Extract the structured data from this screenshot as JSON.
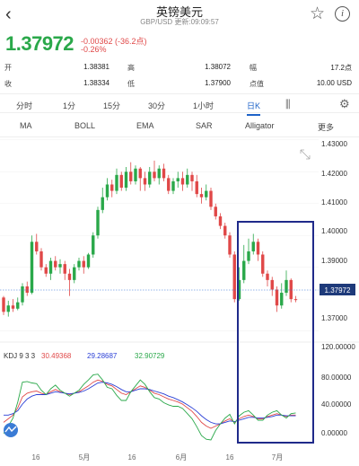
{
  "header": {
    "title": "英镑美元",
    "subtitle": "GBP/USD 更新:09:09:57"
  },
  "quote": {
    "price": "1.37972",
    "change": "-0.00362 (-36.2点)",
    "change_pct": "-0.26%",
    "rows": [
      {
        "l1": "开",
        "v1": "1.38381",
        "l2": "高",
        "v2": "1.38072",
        "l3": "幅",
        "v3": "17.2点"
      },
      {
        "l1": "收",
        "v1": "1.38334",
        "l2": "低",
        "v2": "1.37900",
        "l3": "点值",
        "v3": "10.00 USD"
      }
    ]
  },
  "period_tabs": [
    "分时",
    "1分",
    "15分",
    "30分",
    "1小时",
    "日K"
  ],
  "indicators": [
    "MA",
    "BOLL",
    "EMA",
    "SAR",
    "Alligator",
    "更多"
  ],
  "colors": {
    "up": "#2aa84a",
    "down": "#e04848",
    "accent": "#1e63c8",
    "box": "#1f2a8a"
  },
  "chart": {
    "price_axis": [
      "1.43000",
      "1.42000",
      "1.41000",
      "1.40000",
      "1.39000",
      "1.38000",
      "1.37000"
    ],
    "current_price_label": "1.37972",
    "kdj_axis": [
      "120.00000",
      "80.00000",
      "40.00000",
      "0.00000"
    ],
    "kdj_legend": {
      "name": "KDJ 9 3 3",
      "k": "30.49368",
      "d": "29.28687",
      "j": "32.90729"
    },
    "x_labels": [
      "16",
      "5月",
      "16",
      "6月",
      "16",
      "7月"
    ]
  },
  "chart_data": {
    "type": "candlestick",
    "series": [
      {
        "name": "GBP/USD",
        "ohlc": [
          [
            1.3805,
            1.376,
            1.381,
            1.375
          ],
          [
            1.376,
            1.378,
            1.3795,
            1.3745
          ],
          [
            1.378,
            1.377,
            1.38,
            1.376
          ],
          [
            1.377,
            1.379,
            1.3805,
            1.3765
          ],
          [
            1.379,
            1.384,
            1.385,
            1.378
          ],
          [
            1.384,
            1.382,
            1.3855,
            1.381
          ],
          [
            1.382,
            1.398,
            1.4,
            1.3815
          ],
          [
            1.398,
            1.395,
            1.4005,
            1.394
          ],
          [
            1.395,
            1.39,
            1.396,
            1.389
          ],
          [
            1.39,
            1.388,
            1.391,
            1.387
          ],
          [
            1.388,
            1.392,
            1.393,
            1.386
          ],
          [
            1.392,
            1.39,
            1.3935,
            1.389
          ],
          [
            1.39,
            1.391,
            1.3925,
            1.388
          ],
          [
            1.391,
            1.388,
            1.392,
            1.386
          ],
          [
            1.388,
            1.386,
            1.3895,
            1.381
          ],
          [
            1.386,
            1.39,
            1.391,
            1.385
          ],
          [
            1.39,
            1.392,
            1.393,
            1.389
          ],
          [
            1.392,
            1.39,
            1.3935,
            1.388
          ],
          [
            1.39,
            1.394,
            1.3945,
            1.3895
          ],
          [
            1.394,
            1.4,
            1.401,
            1.393
          ],
          [
            1.4,
            1.408,
            1.409,
            1.399
          ],
          [
            1.408,
            1.412,
            1.415,
            1.407
          ],
          [
            1.412,
            1.416,
            1.418,
            1.411
          ],
          [
            1.416,
            1.414,
            1.4175,
            1.412
          ],
          [
            1.414,
            1.419,
            1.421,
            1.413
          ],
          [
            1.419,
            1.415,
            1.42,
            1.414
          ],
          [
            1.415,
            1.42,
            1.4215,
            1.414
          ],
          [
            1.42,
            1.417,
            1.423,
            1.416
          ],
          [
            1.417,
            1.421,
            1.422,
            1.416
          ],
          [
            1.421,
            1.418,
            1.4215,
            1.414
          ],
          [
            1.418,
            1.416,
            1.42,
            1.414
          ],
          [
            1.416,
            1.42,
            1.4215,
            1.415
          ],
          [
            1.42,
            1.418,
            1.4235,
            1.417
          ],
          [
            1.418,
            1.421,
            1.422,
            1.416
          ],
          [
            1.421,
            1.418,
            1.4225,
            1.417
          ],
          [
            1.418,
            1.414,
            1.419,
            1.413
          ],
          [
            1.414,
            1.417,
            1.418,
            1.413
          ],
          [
            1.417,
            1.418,
            1.42,
            1.415
          ],
          [
            1.418,
            1.416,
            1.42,
            1.414
          ],
          [
            1.416,
            1.419,
            1.421,
            1.415
          ],
          [
            1.419,
            1.417,
            1.42,
            1.414
          ],
          [
            1.417,
            1.413,
            1.419,
            1.412
          ],
          [
            1.413,
            1.412,
            1.415,
            1.41
          ],
          [
            1.412,
            1.414,
            1.416,
            1.411
          ],
          [
            1.414,
            1.409,
            1.415,
            1.408
          ],
          [
            1.409,
            1.406,
            1.41,
            1.405
          ],
          [
            1.406,
            1.403,
            1.407,
            1.402
          ],
          [
            1.403,
            1.4,
            1.404,
            1.399
          ],
          [
            1.4,
            1.394,
            1.401,
            1.393
          ],
          [
            1.394,
            1.38,
            1.395,
            1.379
          ],
          [
            1.38,
            1.386,
            1.39,
            1.3795
          ],
          [
            1.386,
            1.392,
            1.397,
            1.385
          ],
          [
            1.392,
            1.395,
            1.399,
            1.391
          ],
          [
            1.395,
            1.398,
            1.4005,
            1.394
          ],
          [
            1.398,
            1.394,
            1.399,
            1.392
          ],
          [
            1.394,
            1.388,
            1.395,
            1.387
          ],
          [
            1.388,
            1.386,
            1.389,
            1.384
          ],
          [
            1.386,
            1.383,
            1.387,
            1.381
          ],
          [
            1.383,
            1.378,
            1.384,
            1.376
          ],
          [
            1.378,
            1.382,
            1.385,
            1.377
          ],
          [
            1.382,
            1.386,
            1.389,
            1.381
          ],
          [
            1.386,
            1.38,
            1.3865,
            1.379
          ],
          [
            1.38,
            1.3797,
            1.381,
            1.379
          ]
        ]
      },
      {
        "name": "K",
        "values": [
          20,
          25,
          30,
          40,
          55,
          60,
          62,
          63,
          60,
          58,
          62,
          65,
          62,
          60,
          58,
          60,
          62,
          66,
          70,
          75,
          78,
          76,
          72,
          70,
          65,
          60,
          58,
          62,
          66,
          70,
          68,
          64,
          60,
          58,
          55,
          52,
          50,
          48,
          45,
          40,
          35,
          28,
          20,
          15,
          12,
          15,
          18,
          22,
          25,
          20,
          25,
          28,
          30,
          28,
          25,
          25,
          28,
          30,
          32,
          30,
          28,
          30,
          30
        ]
      },
      {
        "name": "D",
        "values": [
          30,
          30,
          32,
          36,
          45,
          52,
          56,
          58,
          58,
          58,
          60,
          62,
          61,
          60,
          59,
          60,
          61,
          63,
          66,
          70,
          74,
          75,
          74,
          72,
          69,
          65,
          62,
          62,
          64,
          66,
          66,
          65,
          63,
          61,
          59,
          56,
          54,
          51,
          48,
          44,
          40,
          35,
          29,
          24,
          20,
          18,
          18,
          20,
          22,
          21,
          23,
          25,
          27,
          27,
          26,
          26,
          27,
          28,
          30,
          30,
          29,
          29,
          29
        ]
      },
      {
        "name": "J",
        "values": [
          5,
          15,
          26,
          48,
          75,
          76,
          74,
          73,
          64,
          58,
          66,
          71,
          64,
          60,
          56,
          60,
          64,
          72,
          78,
          85,
          86,
          78,
          68,
          66,
          57,
          50,
          50,
          62,
          70,
          78,
          72,
          62,
          54,
          52,
          47,
          44,
          42,
          42,
          39,
          32,
          25,
          14,
          2,
          -3,
          -4,
          9,
          18,
          26,
          31,
          18,
          29,
          34,
          36,
          30,
          23,
          23,
          30,
          34,
          36,
          30,
          26,
          32,
          33
        ]
      }
    ],
    "ylim": [
      1.3665,
      1.4308
    ],
    "kdj_ylim": [
      -20,
      125
    ]
  }
}
